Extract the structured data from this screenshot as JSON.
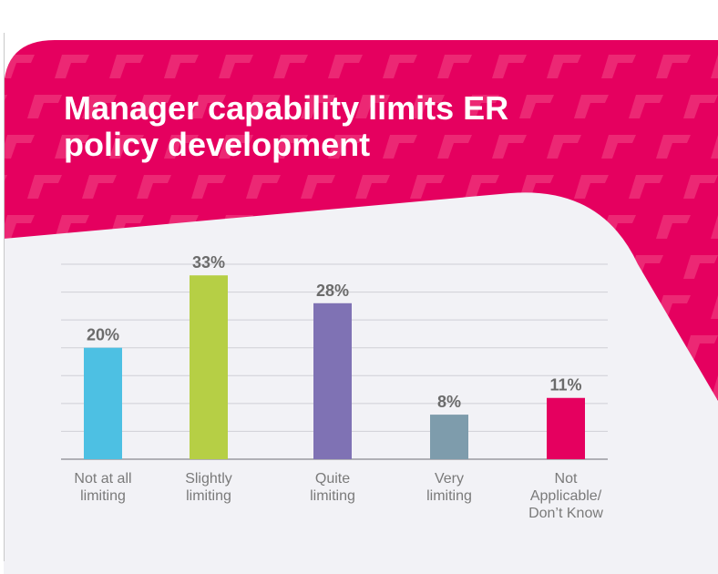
{
  "colors": {
    "banner": "#E5005F",
    "slash": "#F3598F",
    "panel": "#F2F2F6",
    "gridline": "#CFCFD6",
    "axis": "#9A9AA0",
    "value_label": "#6B6B6B",
    "category_label": "#7A7A7A"
  },
  "title_lines": [
    "Manager capability limits ER",
    "policy development"
  ],
  "chart_data": {
    "type": "bar",
    "title": "Manager capability limits ER policy development",
    "categories": [
      [
        "Not at all",
        "limiting"
      ],
      [
        "Slightly",
        "limiting"
      ],
      [
        "Quite",
        "limiting"
      ],
      [
        "Very",
        "limiting"
      ],
      [
        "Not",
        "Applicable/",
        "Don’t Know"
      ]
    ],
    "values": [
      20,
      33,
      28,
      8,
      11
    ],
    "value_labels": [
      "20%",
      "33%",
      "28%",
      "8%",
      "11%"
    ],
    "bar_colors": [
      "#4DC0E3",
      "#B6CF45",
      "#7F72B4",
      "#7E9CAC",
      "#E5005F"
    ],
    "ylim": [
      0,
      35
    ],
    "grid": true,
    "xlabel": "",
    "ylabel": ""
  }
}
